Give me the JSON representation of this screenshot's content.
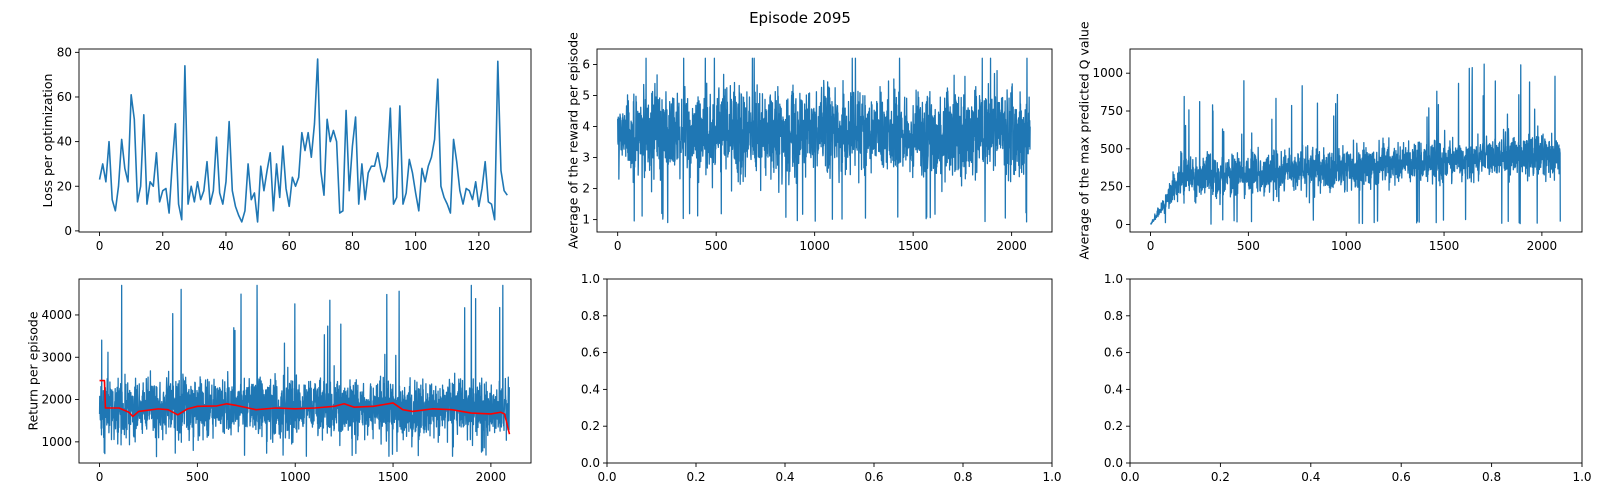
{
  "figure": {
    "suptitle": "Episode 2095"
  },
  "chart_data": [
    {
      "type": "line",
      "ylabel": "Loss per optimization",
      "xlim": [
        -6.5,
        136.5
      ],
      "ylim": [
        -0.5,
        81.5
      ],
      "xticks": [
        0,
        20,
        40,
        60,
        80,
        100,
        120
      ],
      "yticks": [
        0,
        20,
        40,
        60,
        80
      ],
      "series": [
        {
          "color": "#1f77b4",
          "points": [
            [
              0,
              23
            ],
            [
              1,
              30
            ],
            [
              2,
              22
            ],
            [
              3,
              40
            ],
            [
              4,
              14
            ],
            [
              5,
              9
            ],
            [
              6,
              20
            ],
            [
              7,
              41
            ],
            [
              8,
              28
            ],
            [
              9,
              22
            ],
            [
              10,
              61
            ],
            [
              11,
              50
            ],
            [
              12,
              13
            ],
            [
              13,
              20
            ],
            [
              14,
              52
            ],
            [
              15,
              12
            ],
            [
              16,
              22
            ],
            [
              17,
              20
            ],
            [
              18,
              35
            ],
            [
              19,
              13
            ],
            [
              20,
              18
            ],
            [
              21,
              19
            ],
            [
              22,
              8
            ],
            [
              23,
              30
            ],
            [
              24,
              48
            ],
            [
              25,
              12
            ],
            [
              26,
              5
            ],
            [
              27,
              74
            ],
            [
              28,
              12
            ],
            [
              29,
              20
            ],
            [
              30,
              13
            ],
            [
              31,
              22
            ],
            [
              32,
              14
            ],
            [
              33,
              18
            ],
            [
              34,
              31
            ],
            [
              35,
              12
            ],
            [
              36,
              18
            ],
            [
              37,
              42
            ],
            [
              38,
              17
            ],
            [
              39,
              12
            ],
            [
              40,
              22
            ],
            [
              41,
              49
            ],
            [
              42,
              18
            ],
            [
              43,
              11
            ],
            [
              44,
              7
            ],
            [
              45,
              4
            ],
            [
              46,
              9
            ],
            [
              47,
              30
            ],
            [
              48,
              14
            ],
            [
              49,
              17
            ],
            [
              50,
              4
            ],
            [
              51,
              29
            ],
            [
              52,
              18
            ],
            [
              53,
              27
            ],
            [
              54,
              35
            ],
            [
              55,
              9
            ],
            [
              56,
              30
            ],
            [
              57,
              15
            ],
            [
              58,
              38
            ],
            [
              59,
              19
            ],
            [
              60,
              11
            ],
            [
              61,
              24
            ],
            [
              62,
              20
            ],
            [
              63,
              24
            ],
            [
              64,
              44
            ],
            [
              65,
              36
            ],
            [
              66,
              44
            ],
            [
              67,
              33
            ],
            [
              68,
              48
            ],
            [
              69,
              77
            ],
            [
              70,
              27
            ],
            [
              71,
              16
            ],
            [
              72,
              50
            ],
            [
              73,
              40
            ],
            [
              74,
              45
            ],
            [
              75,
              40
            ],
            [
              76,
              8
            ],
            [
              77,
              9
            ],
            [
              78,
              54
            ],
            [
              79,
              18
            ],
            [
              80,
              38
            ],
            [
              81,
              51
            ],
            [
              82,
              12
            ],
            [
              83,
              30
            ],
            [
              84,
              14
            ],
            [
              85,
              26
            ],
            [
              86,
              29
            ],
            [
              87,
              29
            ],
            [
              88,
              35
            ],
            [
              89,
              27
            ],
            [
              90,
              22
            ],
            [
              91,
              29
            ],
            [
              92,
              55
            ],
            [
              93,
              12
            ],
            [
              94,
              15
            ],
            [
              95,
              56
            ],
            [
              96,
              12
            ],
            [
              97,
              17
            ],
            [
              98,
              32
            ],
            [
              99,
              26
            ],
            [
              100,
              17
            ],
            [
              101,
              9
            ],
            [
              102,
              28
            ],
            [
              103,
              22
            ],
            [
              104,
              29
            ],
            [
              105,
              33
            ],
            [
              106,
              41
            ],
            [
              107,
              68
            ],
            [
              108,
              20
            ],
            [
              109,
              15
            ],
            [
              110,
              12
            ],
            [
              111,
              8
            ],
            [
              112,
              41
            ],
            [
              113,
              31
            ],
            [
              114,
              18
            ],
            [
              115,
              12
            ],
            [
              116,
              19
            ],
            [
              117,
              18
            ],
            [
              118,
              14
            ],
            [
              119,
              22
            ],
            [
              120,
              11
            ],
            [
              121,
              19
            ],
            [
              122,
              31
            ],
            [
              123,
              13
            ],
            [
              124,
              12
            ],
            [
              125,
              5
            ],
            [
              126,
              76
            ],
            [
              127,
              27
            ],
            [
              128,
              18
            ],
            [
              129,
              16
            ]
          ]
        }
      ]
    },
    {
      "type": "line",
      "ylabel": "Average of the reward per episode",
      "xlim": [
        -105,
        2205
      ],
      "ylim": [
        0.6,
        6.5
      ],
      "xticks": [
        0,
        500,
        1000,
        1500,
        2000
      ],
      "yticks": [
        1,
        2,
        3,
        4,
        5,
        6
      ],
      "noise": {
        "count": 2095,
        "mean": 3.8,
        "spread": 1.1,
        "min": 0.9,
        "max": 6.2
      },
      "series": [
        {
          "color": "#1f77b4"
        }
      ]
    },
    {
      "type": "line",
      "ylabel": "Average of the max predicted Q value",
      "xlim": [
        -105,
        2205
      ],
      "ylim": [
        -50,
        1160
      ],
      "xticks": [
        0,
        500,
        1000,
        1500,
        2000
      ],
      "yticks": [
        0,
        250,
        500,
        750,
        1000
      ],
      "noise": {
        "count": 2095,
        "ramp_end": 150,
        "mean_start": 300,
        "mean_end": 470,
        "spread": 110,
        "min": 0,
        "max": 1110
      },
      "series": [
        {
          "color": "#1f77b4"
        }
      ]
    },
    {
      "type": "line",
      "ylabel": "Return per episode",
      "xlim": [
        -105,
        2205
      ],
      "ylim": [
        500,
        4850
      ],
      "xticks": [
        0,
        500,
        1000,
        1500,
        2000
      ],
      "yticks": [
        1000,
        2000,
        3000,
        4000
      ],
      "noise": {
        "count": 2095,
        "mean": 1800,
        "spread": 550,
        "min": 650,
        "max": 4700
      },
      "series": [
        {
          "name": "",
          "color": "#1f77b4"
        },
        {
          "name": "",
          "color": "#ff0000",
          "points": [
            [
              0,
              2450
            ],
            [
              25,
              2450
            ],
            [
              30,
              1800
            ],
            [
              100,
              1800
            ],
            [
              150,
              1700
            ],
            [
              170,
              1600
            ],
            [
              200,
              1720
            ],
            [
              300,
              1780
            ],
            [
              350,
              1760
            ],
            [
              400,
              1640
            ],
            [
              450,
              1780
            ],
            [
              500,
              1840
            ],
            [
              600,
              1850
            ],
            [
              650,
              1900
            ],
            [
              700,
              1860
            ],
            [
              800,
              1760
            ],
            [
              900,
              1800
            ],
            [
              1000,
              1780
            ],
            [
              1100,
              1800
            ],
            [
              1200,
              1840
            ],
            [
              1250,
              1900
            ],
            [
              1300,
              1820
            ],
            [
              1400,
              1840
            ],
            [
              1450,
              1880
            ],
            [
              1500,
              1920
            ],
            [
              1550,
              1760
            ],
            [
              1600,
              1720
            ],
            [
              1700,
              1780
            ],
            [
              1800,
              1760
            ],
            [
              1900,
              1680
            ],
            [
              2000,
              1660
            ],
            [
              2050,
              1700
            ],
            [
              2070,
              1660
            ],
            [
              2095,
              1180
            ]
          ]
        }
      ]
    },
    {
      "type": "line",
      "ylabel": "",
      "xlim": [
        0,
        1
      ],
      "ylim": [
        0,
        1
      ],
      "xticks": [
        0,
        0.2,
        0.4,
        0.6,
        0.8,
        1
      ],
      "yticks": [
        0,
        0.2,
        0.4,
        0.6,
        0.8,
        1
      ],
      "xtick_labels": [
        "0.0",
        "0.2",
        "0.4",
        "0.6",
        "0.8",
        "1.0"
      ],
      "ytick_labels": [
        "0.0",
        "0.2",
        "0.4",
        "0.6",
        "0.8",
        "1.0"
      ],
      "series": []
    },
    {
      "type": "line",
      "ylabel": "",
      "xlim": [
        0,
        1
      ],
      "ylim": [
        0,
        1
      ],
      "xticks": [
        0,
        0.2,
        0.4,
        0.6,
        0.8,
        1
      ],
      "yticks": [
        0,
        0.2,
        0.4,
        0.6,
        0.8,
        1
      ],
      "xtick_labels": [
        "0.0",
        "0.2",
        "0.4",
        "0.6",
        "0.8",
        "1.0"
      ],
      "ytick_labels": [
        "0.0",
        "0.2",
        "0.4",
        "0.6",
        "0.8",
        "1.0"
      ],
      "series": []
    }
  ]
}
